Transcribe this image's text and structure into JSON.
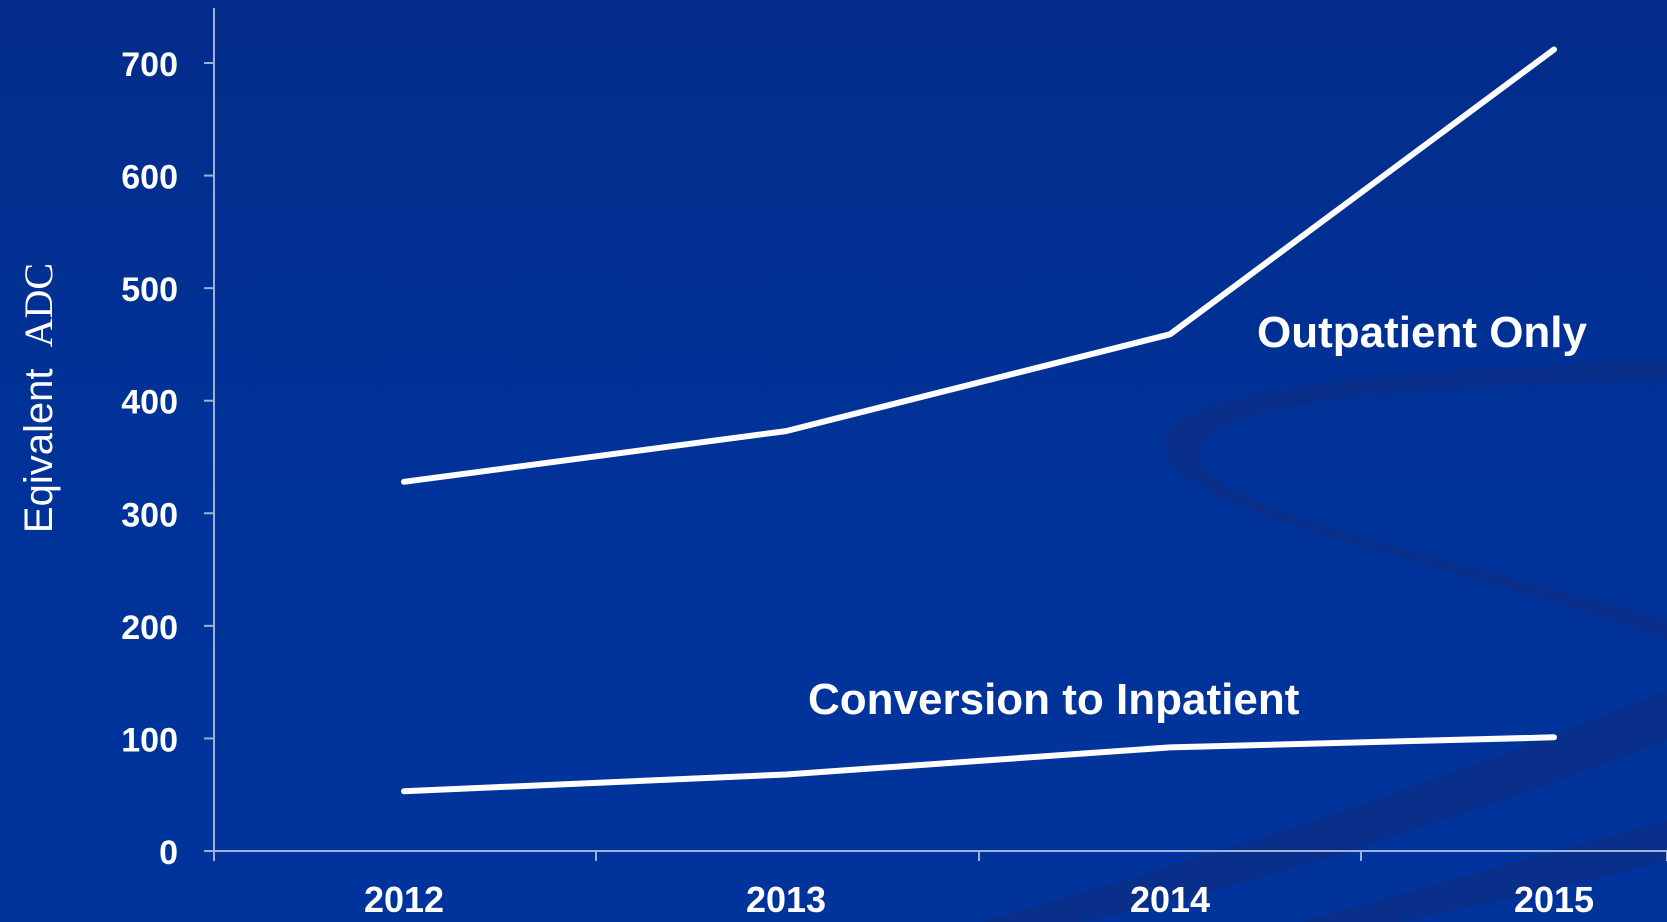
{
  "chart_data": {
    "type": "line",
    "categories": [
      "2012",
      "2013",
      "2014",
      "2015"
    ],
    "series": [
      {
        "name": "Outpatient Only",
        "values": [
          328,
          373,
          459,
          712
        ]
      },
      {
        "name": "Conversion to Inpatient",
        "values": [
          53,
          68,
          92,
          101
        ]
      }
    ],
    "ylabel_part1": "Eqivalent",
    "ylabel_part2": "ADC",
    "yticks": [
      "0",
      "100",
      "200",
      "300",
      "400",
      "500",
      "600",
      "700"
    ],
    "ylim": [
      0,
      700
    ],
    "grid": false,
    "legend": "none"
  },
  "colors": {
    "background": "#00339a",
    "line": "#ffffff",
    "axis": "#9fb0d8",
    "swoosh": "#002a80"
  }
}
